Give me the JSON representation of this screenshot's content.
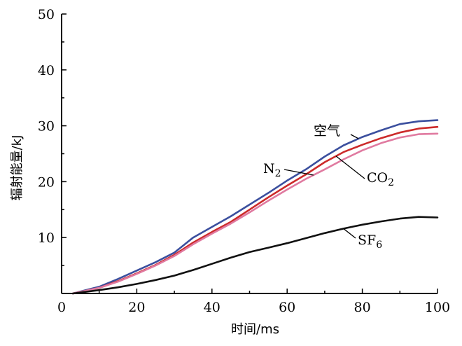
{
  "chart_data": {
    "type": "line",
    "xlabel": "时间/ms",
    "ylabel": "辐射能量/kJ",
    "xlim": [
      0,
      100
    ],
    "ylim": [
      0,
      50
    ],
    "x_ticks": [
      "0",
      "20",
      "40",
      "60",
      "80",
      "100"
    ],
    "y_ticks": [
      "10",
      "20",
      "30",
      "40",
      "50"
    ],
    "grid": false,
    "legend": "none",
    "series": [
      {
        "name": "空气",
        "color": "#3b4f9e",
        "x": [
          3,
          10,
          15,
          20,
          25,
          30,
          35,
          40,
          45,
          50,
          55,
          60,
          65,
          70,
          75,
          80,
          85,
          90,
          95,
          100
        ],
        "y": [
          0,
          1.2,
          2.6,
          4.1,
          5.6,
          7.3,
          10.0,
          11.9,
          13.8,
          15.9,
          18.0,
          20.2,
          22.2,
          24.5,
          26.5,
          28.0,
          29.2,
          30.3,
          30.8,
          31.0
        ]
      },
      {
        "name": "CO2",
        "label_main": "CO",
        "label_sub": "2",
        "color": "#cc2a2a",
        "x": [
          3,
          10,
          15,
          20,
          25,
          30,
          35,
          40,
          45,
          50,
          55,
          60,
          65,
          70,
          75,
          80,
          85,
          90,
          95,
          100
        ],
        "y": [
          0,
          1.0,
          2.2,
          3.6,
          5.1,
          6.9,
          9.1,
          11.0,
          12.8,
          15.0,
          17.2,
          19.3,
          21.3,
          23.5,
          25.3,
          26.6,
          27.8,
          28.8,
          29.5,
          29.8
        ]
      },
      {
        "name": "N2",
        "label_main": "N",
        "label_sub": "2",
        "color": "#e07aa0",
        "x": [
          3,
          10,
          15,
          20,
          25,
          30,
          35,
          40,
          45,
          50,
          55,
          60,
          65,
          70,
          75,
          80,
          85,
          90,
          95,
          100
        ],
        "y": [
          0,
          1.0,
          2.1,
          3.5,
          5.0,
          6.7,
          8.8,
          10.7,
          12.5,
          14.5,
          16.6,
          18.6,
          20.5,
          22.2,
          24.0,
          25.6,
          26.9,
          27.9,
          28.5,
          28.6
        ]
      },
      {
        "name": "SF6",
        "label_main": "SF",
        "label_sub": "6",
        "color": "#111111",
        "x": [
          3,
          10,
          15,
          20,
          25,
          30,
          35,
          40,
          45,
          50,
          55,
          60,
          65,
          70,
          75,
          80,
          85,
          90,
          95,
          100
        ],
        "y": [
          0,
          0.6,
          1.1,
          1.7,
          2.4,
          3.2,
          4.2,
          5.3,
          6.4,
          7.4,
          8.2,
          9.0,
          9.9,
          10.8,
          11.6,
          12.3,
          12.9,
          13.4,
          13.7,
          13.6
        ]
      }
    ]
  }
}
